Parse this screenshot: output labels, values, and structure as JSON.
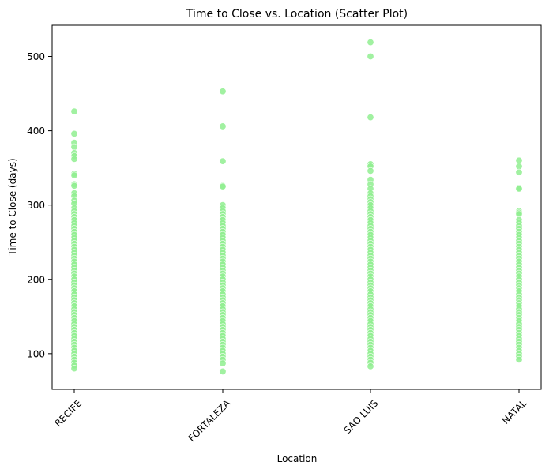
{
  "chart_data": {
    "type": "scatter",
    "title": "Time to Close vs. Location (Scatter Plot)",
    "xlabel": "Location",
    "ylabel": "Time to Close (days)",
    "categories": [
      "RECIFE",
      "FORTALEZA",
      "SAO LUIS",
      "NATAL"
    ],
    "yticks": [
      100,
      200,
      300,
      400,
      500
    ],
    "ylim": [
      52,
      542
    ],
    "grid": false,
    "legend": "none",
    "colors": {
      "point": "#90ee90",
      "axis": "#000000"
    },
    "series": [
      {
        "category": "RECIFE",
        "values": [
          426,
          396,
          384,
          378,
          370,
          366,
          362,
          342,
          340,
          328,
          326,
          316,
          312,
          306,
          302,
          296,
          292,
          288,
          284,
          280,
          276,
          272,
          268,
          264,
          260,
          256,
          252,
          248,
          244,
          240,
          236,
          232,
          228,
          224,
          220,
          216,
          212,
          208,
          204,
          200,
          196,
          192,
          188,
          184,
          180,
          176,
          172,
          168,
          164,
          160,
          156,
          152,
          148,
          144,
          140,
          136,
          132,
          128,
          124,
          120,
          116,
          112,
          108,
          104,
          100,
          96,
          92,
          88,
          84,
          80
        ]
      },
      {
        "category": "FORTALEZA",
        "values": [
          453,
          406,
          359,
          326,
          325,
          300,
          296,
          292,
          288,
          284,
          280,
          276,
          272,
          268,
          264,
          260,
          256,
          252,
          248,
          244,
          240,
          236,
          232,
          228,
          224,
          220,
          216,
          212,
          208,
          204,
          200,
          196,
          192,
          188,
          184,
          180,
          176,
          172,
          168,
          164,
          160,
          156,
          152,
          148,
          144,
          140,
          136,
          132,
          128,
          124,
          120,
          116,
          112,
          108,
          104,
          100,
          96,
          92,
          87,
          76
        ]
      },
      {
        "category": "SAO LUIS",
        "values": [
          519,
          500,
          418,
          355,
          352,
          346,
          334,
          328,
          322,
          316,
          312,
          308,
          304,
          300,
          296,
          292,
          288,
          284,
          280,
          276,
          272,
          268,
          264,
          260,
          256,
          252,
          248,
          244,
          240,
          236,
          232,
          228,
          224,
          220,
          216,
          212,
          208,
          204,
          200,
          196,
          192,
          188,
          184,
          180,
          176,
          172,
          168,
          164,
          160,
          156,
          152,
          148,
          144,
          140,
          136,
          132,
          128,
          124,
          120,
          116,
          112,
          108,
          104,
          100,
          96,
          92,
          88,
          83
        ]
      },
      {
        "category": "NATAL",
        "values": [
          360,
          352,
          344,
          323,
          322,
          292,
          290,
          288,
          280,
          276,
          272,
          268,
          264,
          260,
          256,
          252,
          248,
          244,
          240,
          236,
          232,
          228,
          224,
          220,
          216,
          212,
          208,
          204,
          200,
          196,
          192,
          188,
          184,
          180,
          176,
          172,
          168,
          164,
          160,
          156,
          152,
          148,
          144,
          140,
          136,
          132,
          128,
          124,
          120,
          116,
          112,
          108,
          104,
          100,
          96,
          92
        ]
      }
    ]
  }
}
